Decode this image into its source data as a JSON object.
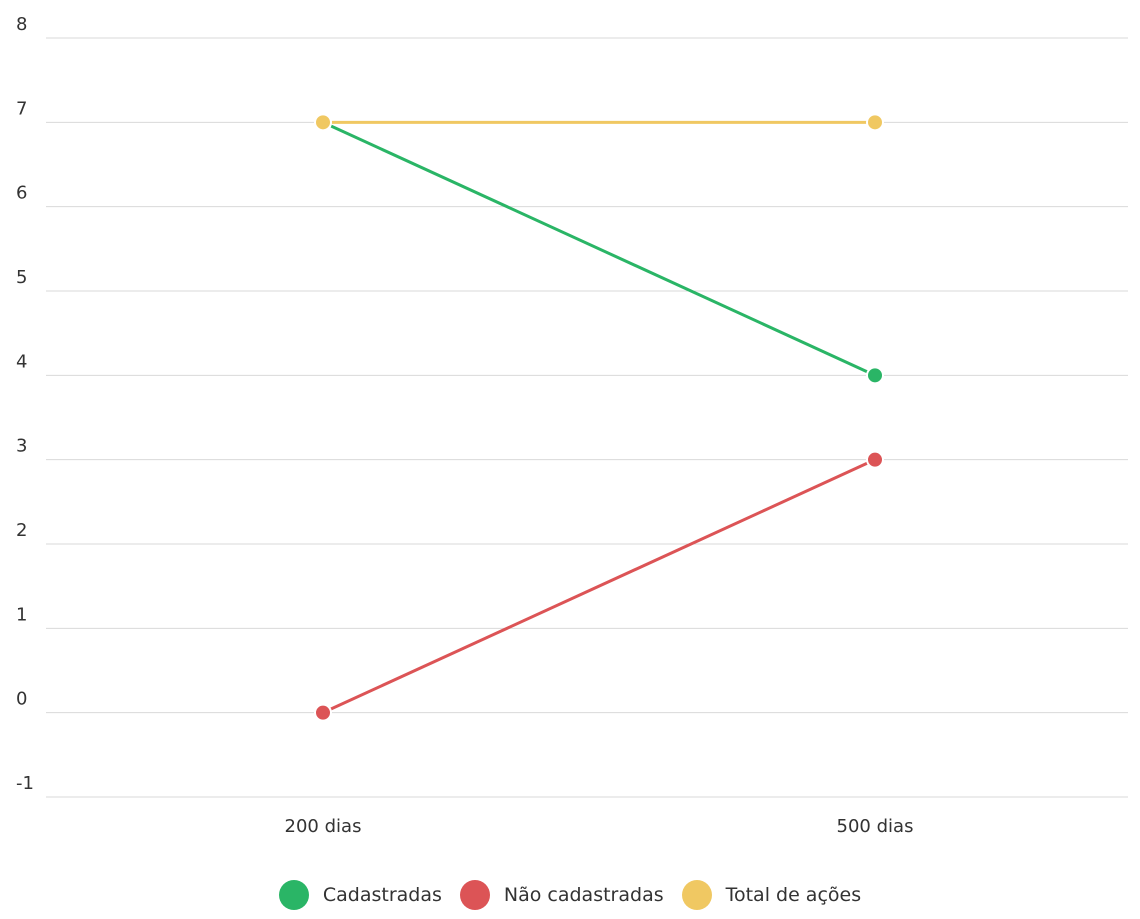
{
  "chart_data": {
    "type": "line",
    "categories": [
      "200 dias",
      "500 dias"
    ],
    "series": [
      {
        "name": "Cadastradas",
        "values": [
          7,
          4
        ],
        "color": "#2ab566"
      },
      {
        "name": "Não cadastradas",
        "values": [
          0,
          3
        ],
        "color": "#dc5456"
      },
      {
        "name": "Total de ações",
        "values": [
          7,
          7
        ],
        "color": "#f0c862"
      }
    ],
    "ylim": [
      -1,
      8
    ],
    "yticks": [
      -1,
      0,
      1,
      2,
      3,
      4,
      5,
      6,
      7,
      8
    ],
    "grid": true,
    "legend_position": "bottom-center",
    "title": "",
    "xlabel": "",
    "ylabel": ""
  }
}
